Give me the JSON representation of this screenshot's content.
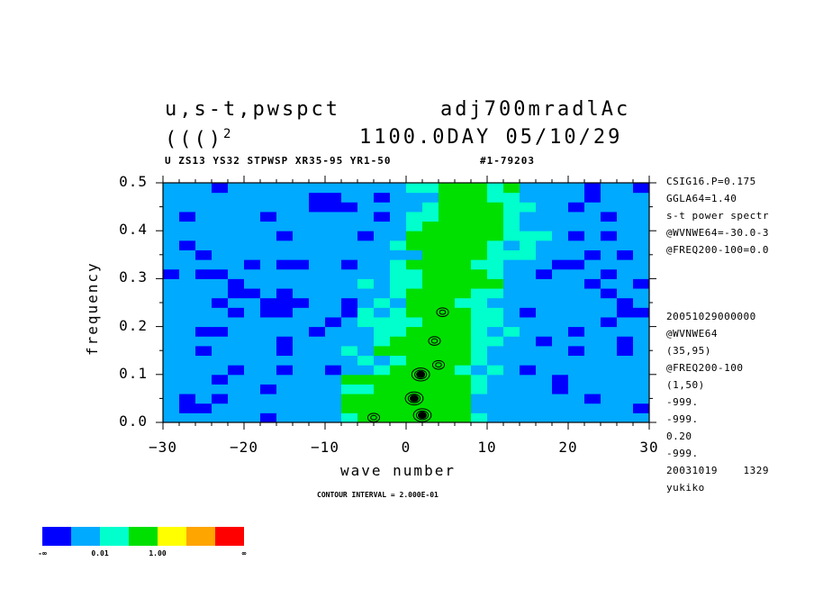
{
  "header": {
    "left_line1": "u,s-t,pwspct",
    "left_line2": "((()",
    "left_line2_sup": "2",
    "right_line1": "adj700mradlAc",
    "right_line2": "1100.0DAY 05/10/29",
    "subtitle_left": "U ZS13 YS32 STPWSP XR35-95 YR1-50",
    "subtitle_right": "#1-79203"
  },
  "side_info": {
    "top": [
      "CSIG16.P=0.175",
      "GGLA64=1.40",
      "s-t power spectr",
      "@WVNWE64=-30.0-3",
      "@FREQ200-100=0.0"
    ],
    "bottom": [
      "20051029000000",
      "@WVNWE64",
      "(35,95)",
      "@FREQ200-100",
      "(1,50)",
      "-999.",
      "-999.",
      "0.20",
      "-999.",
      "20031019    1329",
      "yukiko"
    ]
  },
  "contour_note": "CONTOUR INTERVAL = 2.000E-01",
  "colorbar": {
    "colors": [
      "#0000ff",
      "#00aaff",
      "#00ffcc",
      "#00e000",
      "#ffff00",
      "#ffa500",
      "#ff0000"
    ],
    "labels": [
      "-∞",
      "0.01",
      "1.00",
      "∞"
    ]
  },
  "chart_data": {
    "type": "heatmap",
    "xlabel": "wave number",
    "ylabel": "frequency",
    "xlim": [
      -30,
      30
    ],
    "ylim": [
      0.0,
      0.5
    ],
    "x_ticks": [
      "−30",
      "−20",
      "−10",
      "0",
      "10",
      "20",
      "30"
    ],
    "y_ticks": [
      "0.0",
      "0.1",
      "0.2",
      "0.3",
      "0.4",
      "0.5"
    ],
    "x_tick_values": [
      -30,
      -20,
      -10,
      0,
      10,
      20,
      30
    ],
    "y_tick_values": [
      0.0,
      0.1,
      0.2,
      0.3,
      0.4,
      0.5
    ],
    "cells_x": 30,
    "cells_y": 25,
    "ridge": [
      {
        "wavenumber": 0,
        "frequency": 0.0
      },
      {
        "wavenumber": 3,
        "frequency": 0.2
      },
      {
        "wavenumber": 6,
        "frequency": 0.4
      },
      {
        "wavenumber": 9,
        "frequency": 0.5
      }
    ],
    "contour_peaks": [
      {
        "wavenumber": 1.8,
        "frequency": 0.1,
        "level": "high"
      },
      {
        "wavenumber": 1.0,
        "frequency": 0.05,
        "level": "high"
      },
      {
        "wavenumber": 2.0,
        "frequency": 0.015,
        "level": "high"
      },
      {
        "wavenumber": 4.5,
        "frequency": 0.23,
        "level": "low"
      },
      {
        "wavenumber": 4.0,
        "frequency": 0.12,
        "level": "low"
      },
      {
        "wavenumber": 3.5,
        "frequency": 0.17,
        "level": "low"
      },
      {
        "wavenumber": -4.0,
        "frequency": 0.01,
        "level": "low"
      }
    ]
  }
}
